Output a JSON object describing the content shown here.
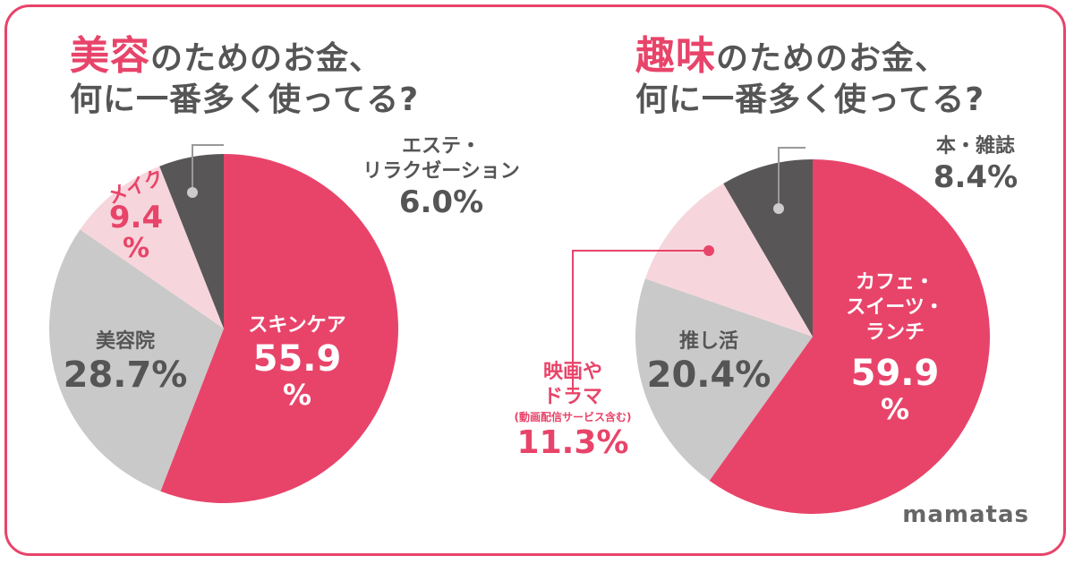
{
  "colors": {
    "accent": "#e8446a",
    "light_gray": "#c9c9c9",
    "light_pink": "#f6d6dc",
    "dark_gray": "#595657",
    "text_gray": "#555555"
  },
  "logo": "mamatas",
  "chart_data": [
    {
      "type": "pie",
      "title_highlight": "美容",
      "title_line1": "のためのお金、",
      "title_line2": "何に一番多く使ってる?",
      "slices": [
        {
          "name": "スキンケア",
          "value": 55.9,
          "display": "55.9",
          "unit": "%",
          "color": "#e8446a"
        },
        {
          "name": "美容院",
          "value": 28.7,
          "display": "28.7%",
          "color": "#c9c9c9"
        },
        {
          "name": "メイク",
          "value": 9.4,
          "display": "9.4",
          "unit": "%",
          "color": "#f6d6dc"
        },
        {
          "name_line1": "エステ・",
          "name_line2": "リラクゼーション",
          "value": 6.0,
          "display": "6.0%",
          "color": "#595657"
        }
      ]
    },
    {
      "type": "pie",
      "title_highlight": "趣味",
      "title_line1": "のためのお金、",
      "title_line2": "何に一番多く使ってる?",
      "slices": [
        {
          "name_line1": "カフェ・",
          "name_line2": "スイーツ・",
          "name_line3": "ランチ",
          "value": 59.9,
          "display": "59.9",
          "unit": "%",
          "color": "#e8446a"
        },
        {
          "name": "推し活",
          "value": 20.4,
          "display": "20.4%",
          "color": "#c9c9c9"
        },
        {
          "name_line1": "映画や",
          "name_line2": "ドラマ",
          "note": "(動画配信サービス含む)",
          "value": 11.3,
          "display": "11.3%",
          "color": "#f6d6dc"
        },
        {
          "name": "本・雑誌",
          "value": 8.4,
          "display": "8.4%",
          "color": "#595657"
        }
      ]
    }
  ]
}
